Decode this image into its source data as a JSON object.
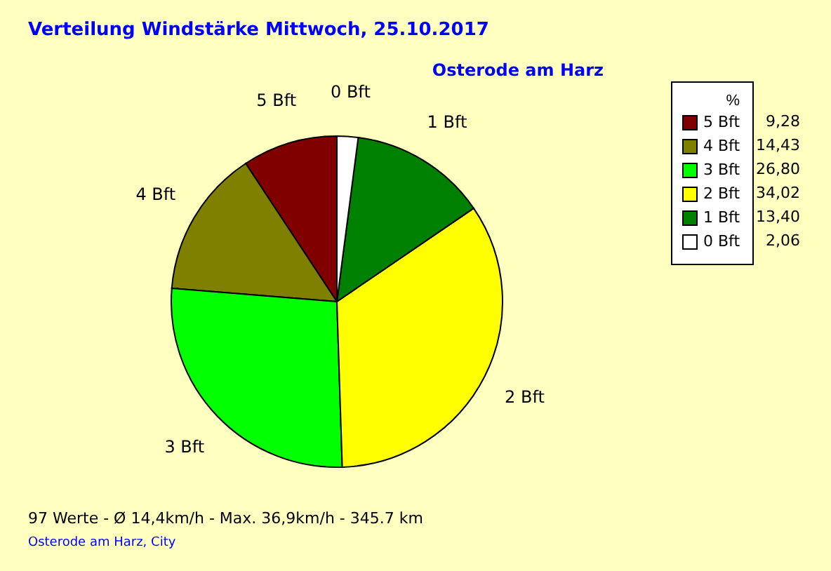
{
  "chart_data": {
    "type": "pie",
    "title": "Verteilung Windstärke  Mittwoch, 25.10.2017",
    "subtitle": "Osterode am Harz",
    "categories": [
      "5 Bft",
      "4 Bft",
      "3 Bft",
      "2 Bft",
      "1 Bft",
      "0 Bft"
    ],
    "values": [
      9.28,
      14.43,
      26.8,
      34.02,
      13.4,
      2.06
    ],
    "value_labels": [
      "9,28",
      "14,43",
      "26,80",
      "34,02",
      "13,40",
      "2,06"
    ],
    "colors": [
      "#800000",
      "#808000",
      "#00ff00",
      "#ffff00",
      "#008000",
      "#ffffff"
    ],
    "legend": "top right",
    "legend_title": "%",
    "annotations": [
      "97 Werte  -  Ø 14,4km/h  -  Max. 36,9km/h  -  345.7 km",
      "Osterode am Harz, City"
    ]
  }
}
